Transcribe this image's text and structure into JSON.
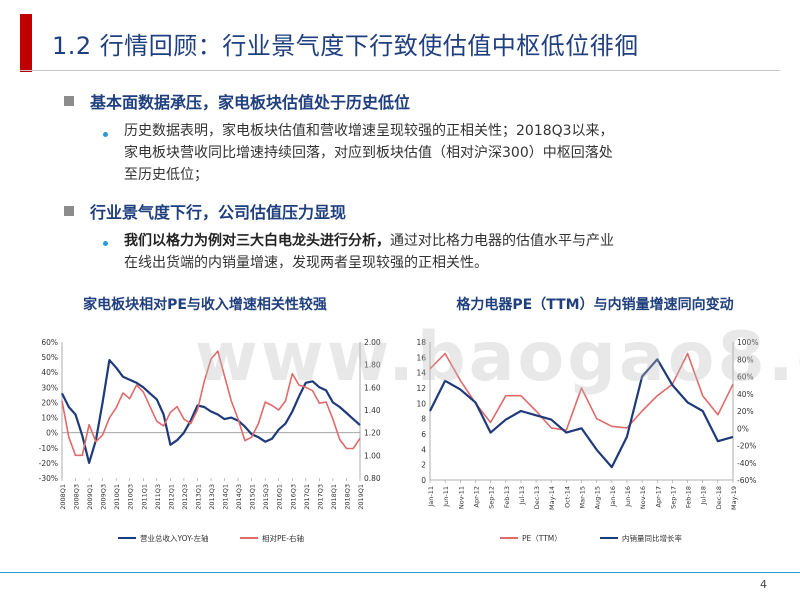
{
  "slide": {
    "title": "1.2 行情回顾：行业景气度下行致使估值中枢低位徘徊",
    "page_number": "4",
    "watermark": "www.baogao8.com",
    "accent_color": "#c00000",
    "title_color": "#1f3f7f"
  },
  "section1": {
    "heading": "基本面数据承压，家电板块估值处于历史低位",
    "bullet_lines": [
      "历史数据表明，家电板块估值和营收增速呈现较强的正相关性；2018Q3以来，",
      "家电板块营收同比增速持续回落，对应到板块估值（相对沪深300）中枢回落处",
      "至历史低位；"
    ]
  },
  "section2": {
    "heading": "行业景气度下行，公司估值压力显现",
    "bullet_bold": "我们以格力为例对三大白电龙头进行分析，",
    "bullet_rest_line1": "通过对比格力电器的估值水平与产业",
    "bullet_line2": "在线出货端的内销量增速，发现两者呈现较强的正相关性。"
  },
  "chart_data": [
    {
      "type": "line",
      "title": "家电板块相对PE与收入增速相关性较强",
      "x": [
        "2008Q1",
        "2008Q2",
        "2008Q3",
        "2008Q4",
        "2009Q1",
        "2009Q2",
        "2009Q3",
        "2009Q4",
        "2010Q1",
        "2010Q2",
        "2010Q3",
        "2010Q4",
        "2011Q1",
        "2011Q2",
        "2011Q3",
        "2011Q4",
        "2012Q1",
        "2012Q2",
        "2012Q3",
        "2012Q4",
        "2013Q1",
        "2013Q2",
        "2013Q3",
        "2013Q4",
        "2014Q1",
        "2014Q2",
        "2014Q3",
        "2014Q4",
        "2015Q1",
        "2015Q2",
        "2015Q3",
        "2015Q4",
        "2016Q1",
        "2016Q2",
        "2016Q3",
        "2016Q4",
        "2017Q1",
        "2017Q2",
        "2017Q3",
        "2017Q4",
        "2018Q1",
        "2018Q2",
        "2018Q3",
        "2018Q4",
        "2019Q1"
      ],
      "x_tick_labels": [
        "2008Q1",
        "2008Q3",
        "2009Q1",
        "2009Q3",
        "2010Q1",
        "2010Q3",
        "2011Q1",
        "2011Q3",
        "2012Q1",
        "2012Q3",
        "2013Q1",
        "2013Q3",
        "2014Q1",
        "2014Q3",
        "2015Q1",
        "2015Q3",
        "2016Q1",
        "2016Q3",
        "2017Q1",
        "2017Q3",
        "2018Q1",
        "2018Q3",
        "2019Q1"
      ],
      "y_left_ticks": [
        "-30%",
        "-20%",
        "-10%",
        "0%",
        "10%",
        "20%",
        "30%",
        "40%",
        "50%",
        "60%"
      ],
      "y_right_ticks": [
        "0.80",
        "1.00",
        "1.20",
        "1.40",
        "1.60",
        "1.80",
        "2.00"
      ],
      "ylim_left": [
        -30,
        60
      ],
      "ylim_right": [
        0.8,
        2.0
      ],
      "series": [
        {
          "name": "营业总收入YOY-左轴",
          "axis": "left",
          "color": "#1f3a7a",
          "values": [
            26,
            17,
            12,
            -2,
            -20,
            -5,
            20,
            48,
            43,
            37,
            35,
            33,
            30,
            26,
            22,
            12,
            -8,
            -5,
            0,
            8,
            18,
            17,
            14,
            12,
            9,
            10,
            8,
            4,
            -1,
            -3,
            -6,
            -4,
            2,
            6,
            14,
            24,
            33,
            34,
            30,
            28,
            20,
            17,
            13,
            9,
            5
          ]
        },
        {
          "name": "相对PE-右轴",
          "axis": "right",
          "color": "#e06a6a",
          "values": [
            1.48,
            1.16,
            1.0,
            1.0,
            1.27,
            1.12,
            1.18,
            1.33,
            1.42,
            1.55,
            1.5,
            1.62,
            1.56,
            1.43,
            1.3,
            1.26,
            1.38,
            1.43,
            1.32,
            1.28,
            1.4,
            1.65,
            1.85,
            1.92,
            1.7,
            1.48,
            1.32,
            1.13,
            1.16,
            1.28,
            1.47,
            1.44,
            1.4,
            1.48,
            1.72,
            1.62,
            1.6,
            1.57,
            1.46,
            1.47,
            1.32,
            1.14,
            1.06,
            1.06,
            1.15
          ]
        }
      ]
    },
    {
      "type": "line",
      "title": "格力电器PE（TTM）与内销量增速同向变动",
      "x": [
        "Jan-11",
        "Jun-11",
        "Nov-11",
        "Apr-12",
        "Sep-12",
        "Feb-13",
        "Jul-13",
        "Dec-13",
        "May-14",
        "Oct-14",
        "Mar-15",
        "Aug-15",
        "Jan-16",
        "Jun-16",
        "Nov-16",
        "Apr-17",
        "Sep-17",
        "Feb-18",
        "Jul-18",
        "Dec-18",
        "May-19"
      ],
      "y_left_ticks": [
        "0",
        "2",
        "4",
        "6",
        "8",
        "10",
        "12",
        "14",
        "16",
        "18"
      ],
      "y_right_ticks": [
        "-60%",
        "-40%",
        "-20%",
        "0%",
        "20%",
        "40%",
        "60%",
        "80%",
        "100%"
      ],
      "ylim_left": [
        0,
        18
      ],
      "ylim_right": [
        -60,
        100
      ],
      "series": [
        {
          "name": "PE（TTM）",
          "axis": "left",
          "color": "#e06a6a",
          "values": [
            14.5,
            16.5,
            13.0,
            10.0,
            7.5,
            11.0,
            11.0,
            9.0,
            6.8,
            6.5,
            12.0,
            8.0,
            7.0,
            6.8,
            9.0,
            11.0,
            12.5,
            16.5,
            11.0,
            8.5,
            12.5
          ]
        },
        {
          "name": "内销量同比增长率",
          "axis": "right",
          "color": "#1f3a7a",
          "values": [
            20,
            55,
            45,
            30,
            -5,
            10,
            20,
            15,
            10,
            -5,
            0,
            -25,
            -45,
            -10,
            60,
            80,
            50,
            30,
            20,
            -15,
            -10
          ]
        }
      ]
    }
  ]
}
